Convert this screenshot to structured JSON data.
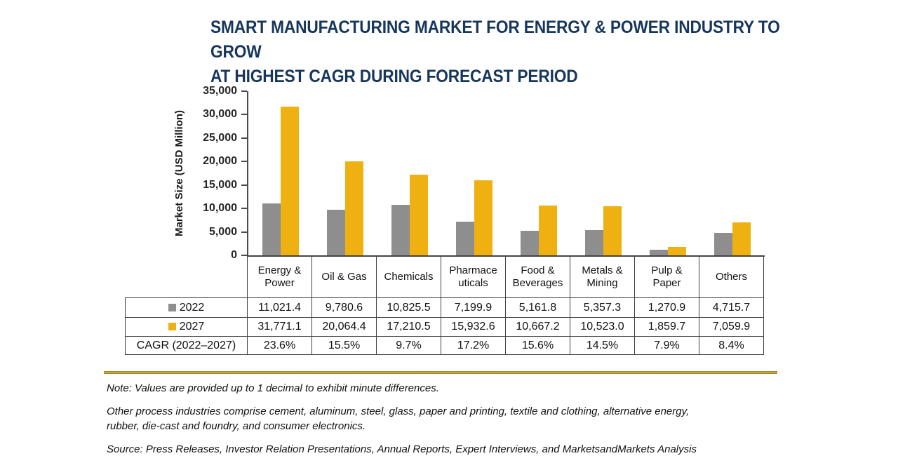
{
  "title": "SMART MANUFACTURING MARKET FOR ENERGY & POWER INDUSTRY TO GROW\nAT HIGHEST CAGR DURING FORECAST PERIOD",
  "colors": {
    "title": "#16365C",
    "bar_2022": "#8E8E8E",
    "bar_2027": "#EEB111",
    "axis": "#4A4A4A",
    "table_border": "#404040",
    "separator_gold": "#B3922C"
  },
  "chart_data": {
    "type": "bar",
    "title": "SMART MANUFACTURING MARKET FOR ENERGY & POWER INDUSTRY TO GROW AT HIGHEST CAGR DURING FORECAST PERIOD",
    "categories": [
      "Energy & Power",
      "Oil & Gas",
      "Chemicals",
      "Pharmaceuticals",
      "Food & Beverages",
      "Metals & Mining",
      "Pulp & Paper",
      "Others"
    ],
    "series": [
      {
        "name": "2022",
        "color": "#8E8E8E",
        "values": [
          11021.4,
          9780.6,
          10825.5,
          7199.9,
          5161.8,
          5357.3,
          1270.9,
          4715.7
        ]
      },
      {
        "name": "2027",
        "color": "#EEB111",
        "values": [
          31771.1,
          20064.4,
          17210.5,
          15932.6,
          10667.2,
          10523.0,
          1859.7,
          7059.9
        ]
      }
    ],
    "cagr_row": {
      "label": "CAGR (2022–2027)",
      "values": [
        "23.6%",
        "15.5%",
        "9.7%",
        "17.2%",
        "15.6%",
        "14.5%",
        "7.9%",
        "8.4%"
      ]
    },
    "xlabel": "",
    "ylabel": "Market Size (USD Million)",
    "ylim": [
      0,
      35000
    ],
    "ystep": 5000,
    "grid": false,
    "legend_position": "table-left"
  },
  "table": {
    "header": [
      "Energy &\nPower",
      "Oil & Gas",
      "Chemicals",
      "Pharmace\nuticals",
      "Food &\nBeverages",
      "Metals &\nMining",
      "Pulp &\nPaper",
      "Others"
    ],
    "rows": [
      {
        "label": "2022",
        "values": [
          "11,021.4",
          "9,780.6",
          "10,825.5",
          "7,199.9",
          "5,161.8",
          "5,357.3",
          "1,270.9",
          "4,715.7"
        ]
      },
      {
        "label": "2027",
        "values": [
          "31,771.1",
          "20,064.4",
          "17,210.5",
          "15,932.6",
          "10,667.2",
          "10,523.0",
          "1,859.7",
          "7,059.9"
        ]
      },
      {
        "label": "CAGR (2022–2027)",
        "values": [
          "23.6%",
          "15.5%",
          "9.7%",
          "17.2%",
          "15.6%",
          "14.5%",
          "7.9%",
          "8.4%"
        ]
      }
    ]
  },
  "notes": {
    "precision": "Note: Values are provided up to 1 decimal to exhibit minute differences.",
    "other_industries": "Other process industries comprise cement, aluminum, steel, glass, paper and printing, textile and clothing, alternative energy,\nrubber, die-cast and foundry, and consumer electronics.",
    "source": "Source: Press Releases, Investor Relation Presentations, Annual Reports, Expert Interviews, and MarketsandMarkets Analysis"
  }
}
